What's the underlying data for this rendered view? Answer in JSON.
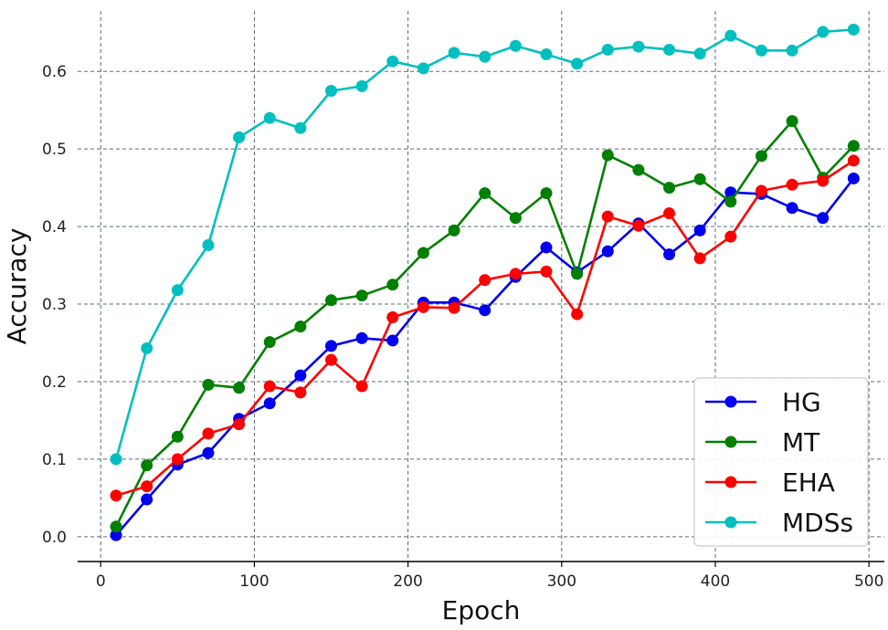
{
  "chart_data": {
    "type": "line",
    "title": "",
    "xlabel": "Epoch",
    "ylabel": "Accuracy",
    "xlim": [
      -15,
      510
    ],
    "ylim": [
      -0.032,
      0.678
    ],
    "grid": true,
    "legend_position": "lower-right",
    "x_ticks": [
      0,
      100,
      200,
      300,
      400,
      500
    ],
    "x_tick_labels": [
      "0",
      "100",
      "200",
      "300",
      "400",
      "500"
    ],
    "y_ticks": [
      0.0,
      0.1,
      0.2,
      0.3,
      0.4,
      0.5,
      0.6
    ],
    "y_tick_labels": [
      "0.0",
      "0.1",
      "0.2",
      "0.3",
      "0.4",
      "0.5",
      "0.6"
    ],
    "x": [
      10,
      30,
      50,
      70,
      90,
      110,
      130,
      150,
      170,
      190,
      210,
      230,
      250,
      270,
      290,
      310,
      330,
      350,
      370,
      390,
      410,
      430,
      450,
      470,
      490
    ],
    "series": [
      {
        "name": "HG",
        "color": "#0000ee",
        "values": [
          0.002,
          0.048,
          0.093,
          0.108,
          0.152,
          0.172,
          0.208,
          0.246,
          0.256,
          0.253,
          0.302,
          0.302,
          0.292,
          0.335,
          0.373,
          0.341,
          0.368,
          0.404,
          0.364,
          0.395,
          0.444,
          0.442,
          0.424,
          0.411,
          0.462
        ]
      },
      {
        "name": "MT",
        "color": "#007f00",
        "values": [
          0.013,
          0.092,
          0.129,
          0.196,
          0.192,
          0.251,
          0.271,
          0.305,
          0.311,
          0.325,
          0.366,
          0.395,
          0.443,
          0.411,
          0.443,
          0.339,
          0.492,
          0.473,
          0.45,
          0.461,
          0.432,
          0.491,
          0.536,
          0.463,
          0.504
        ]
      },
      {
        "name": "EHA",
        "color": "#ff0000",
        "values": [
          0.053,
          0.065,
          0.1,
          0.133,
          0.145,
          0.194,
          0.186,
          0.228,
          0.194,
          0.283,
          0.296,
          0.295,
          0.331,
          0.339,
          0.342,
          0.287,
          0.413,
          0.401,
          0.417,
          0.359,
          0.387,
          0.446,
          0.454,
          0.459,
          0.485
        ]
      },
      {
        "name": "MDSs",
        "color": "#00bfbf",
        "values": [
          0.1,
          0.243,
          0.318,
          0.376,
          0.515,
          0.54,
          0.527,
          0.575,
          0.581,
          0.613,
          0.604,
          0.624,
          0.619,
          0.633,
          0.622,
          0.61,
          0.628,
          0.632,
          0.628,
          0.623,
          0.646,
          0.627,
          0.627,
          0.651,
          0.654
        ]
      }
    ]
  }
}
